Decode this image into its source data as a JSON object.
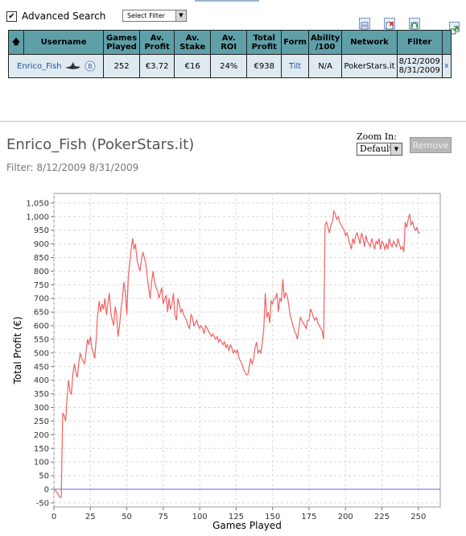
{
  "advanced_search": {
    "label": "Advanced Search",
    "checked": true,
    "check_glyph": "✔"
  },
  "filter_select": {
    "value": "Select Filter",
    "arrow": "▼"
  },
  "toolbar_icons": [
    "export-icon",
    "delete-icon",
    "refresh-icon",
    "popout-icon"
  ],
  "table": {
    "sort_arrow": "🡅",
    "headers": [
      "Username",
      "Games Played",
      "Av. Profit",
      "Av. Stake",
      "Av. ROI",
      "Total Profit",
      "Form",
      "Ability /100",
      "Network",
      "Filter"
    ],
    "row": {
      "username": "Enrico_Fish",
      "games_played": "252",
      "av_profit": "€3.72",
      "av_stake": "€16",
      "av_roi": "24%",
      "total_profit": "€938",
      "form": "Tilt",
      "ability": "N/A",
      "network": "PokerStars.it",
      "filter_from": "8/12/2009",
      "filter_to": "8/31/2009",
      "remove": "x"
    }
  },
  "header": {
    "title": "Enrico_Fish (PokerStars.it)",
    "filter_text": "Filter: 8/12/2009 8/31/2009"
  },
  "zoom": {
    "label": "Zoom In:",
    "value": "Default",
    "arrow": "▼"
  },
  "remove_button": "Remove",
  "chart_data": {
    "type": "line",
    "xlabel": "Games Played",
    "ylabel": "Total Profit (€)",
    "xlim": [
      0,
      265
    ],
    "ylim": [
      -65,
      1085
    ],
    "x_ticks": [
      0,
      25,
      50,
      75,
      100,
      125,
      150,
      175,
      200,
      225,
      250
    ],
    "y_ticks": [
      -50,
      0,
      50,
      100,
      150,
      200,
      250,
      300,
      350,
      400,
      450,
      500,
      550,
      600,
      650,
      700,
      750,
      800,
      850,
      900,
      950,
      1000,
      1050
    ],
    "grid": true,
    "series_color": "#f06060",
    "baseline_color": "#6666ee",
    "series": [
      {
        "points": [
          [
            0,
            0
          ],
          [
            2,
            -10
          ],
          [
            4,
            -30
          ],
          [
            5,
            -30
          ],
          [
            6,
            280
          ],
          [
            7,
            270
          ],
          [
            8,
            250
          ],
          [
            9,
            330
          ],
          [
            10,
            400
          ],
          [
            11,
            360
          ],
          [
            12,
            350
          ],
          [
            13,
            420
          ],
          [
            14,
            460
          ],
          [
            15,
            430
          ],
          [
            16,
            410
          ],
          [
            17,
            460
          ],
          [
            18,
            500
          ],
          [
            19,
            480
          ],
          [
            20,
            470
          ],
          [
            21,
            460
          ],
          [
            22,
            500
          ],
          [
            23,
            550
          ],
          [
            24,
            530
          ],
          [
            25,
            560
          ],
          [
            26,
            520
          ],
          [
            27,
            500
          ],
          [
            28,
            480
          ],
          [
            29,
            550
          ],
          [
            30,
            640
          ],
          [
            31,
            690
          ],
          [
            32,
            650
          ],
          [
            33,
            680
          ],
          [
            34,
            660
          ],
          [
            35,
            700
          ],
          [
            36,
            640
          ],
          [
            37,
            680
          ],
          [
            38,
            720
          ],
          [
            39,
            650
          ],
          [
            40,
            620
          ],
          [
            41,
            600
          ],
          [
            42,
            670
          ],
          [
            43,
            640
          ],
          [
            44,
            560
          ],
          [
            45,
            600
          ],
          [
            46,
            660
          ],
          [
            47,
            700
          ],
          [
            48,
            760
          ],
          [
            49,
            720
          ],
          [
            50,
            640
          ],
          [
            51,
            780
          ],
          [
            52,
            830
          ],
          [
            53,
            880
          ],
          [
            54,
            920
          ],
          [
            55,
            880
          ],
          [
            56,
            900
          ],
          [
            57,
            840
          ],
          [
            58,
            820
          ],
          [
            59,
            800
          ],
          [
            60,
            840
          ],
          [
            61,
            870
          ],
          [
            62,
            850
          ],
          [
            63,
            830
          ],
          [
            64,
            780
          ],
          [
            65,
            740
          ],
          [
            66,
            700
          ],
          [
            67,
            760
          ],
          [
            68,
            800
          ],
          [
            69,
            760
          ],
          [
            70,
            740
          ],
          [
            71,
            730
          ],
          [
            72,
            700
          ],
          [
            73,
            720
          ],
          [
            74,
            740
          ],
          [
            75,
            680
          ],
          [
            76,
            700
          ],
          [
            77,
            710
          ],
          [
            78,
            650
          ],
          [
            79,
            700
          ],
          [
            80,
            660
          ],
          [
            81,
            680
          ],
          [
            82,
            720
          ],
          [
            83,
            640
          ],
          [
            84,
            620
          ],
          [
            85,
            700
          ],
          [
            86,
            680
          ],
          [
            87,
            650
          ],
          [
            88,
            660
          ],
          [
            89,
            640
          ],
          [
            90,
            630
          ],
          [
            91,
            620
          ],
          [
            92,
            600
          ],
          [
            93,
            590
          ],
          [
            94,
            640
          ],
          [
            95,
            630
          ],
          [
            96,
            600
          ],
          [
            97,
            610
          ],
          [
            98,
            620
          ],
          [
            99,
            600
          ],
          [
            100,
            590
          ],
          [
            101,
            600
          ],
          [
            102,
            590
          ],
          [
            103,
            570
          ],
          [
            104,
            600
          ],
          [
            105,
            590
          ],
          [
            106,
            580
          ],
          [
            107,
            570
          ],
          [
            108,
            560
          ],
          [
            109,
            570
          ],
          [
            110,
            560
          ],
          [
            111,
            550
          ],
          [
            112,
            560
          ],
          [
            113,
            540
          ],
          [
            114,
            550
          ],
          [
            115,
            540
          ],
          [
            116,
            530
          ],
          [
            117,
            540
          ],
          [
            118,
            520
          ],
          [
            119,
            530
          ],
          [
            120,
            510
          ],
          [
            121,
            530
          ],
          [
            122,
            520
          ],
          [
            123,
            500
          ],
          [
            124,
            510
          ],
          [
            125,
            500
          ],
          [
            126,
            510
          ],
          [
            127,
            480
          ],
          [
            128,
            470
          ],
          [
            129,
            460
          ],
          [
            130,
            440
          ],
          [
            131,
            430
          ],
          [
            132,
            420
          ],
          [
            133,
            420
          ],
          [
            134,
            450
          ],
          [
            135,
            480
          ],
          [
            136,
            460
          ],
          [
            137,
            480
          ],
          [
            138,
            520
          ],
          [
            139,
            540
          ],
          [
            140,
            500
          ],
          [
            141,
            510
          ],
          [
            142,
            500
          ],
          [
            143,
            540
          ],
          [
            144,
            590
          ],
          [
            145,
            720
          ],
          [
            146,
            630
          ],
          [
            147,
            650
          ],
          [
            148,
            610
          ],
          [
            149,
            690
          ],
          [
            150,
            680
          ],
          [
            151,
            700
          ],
          [
            152,
            700
          ],
          [
            153,
            720
          ],
          [
            154,
            650
          ],
          [
            155,
            700
          ],
          [
            156,
            690
          ],
          [
            157,
            770
          ],
          [
            158,
            700
          ],
          [
            159,
            720
          ],
          [
            160,
            710
          ],
          [
            161,
            680
          ],
          [
            162,
            640
          ],
          [
            163,
            620
          ],
          [
            164,
            600
          ],
          [
            165,
            580
          ],
          [
            166,
            570
          ],
          [
            167,
            550
          ],
          [
            168,
            590
          ],
          [
            169,
            630
          ],
          [
            170,
            620
          ],
          [
            171,
            610
          ],
          [
            172,
            600
          ],
          [
            173,
            590
          ],
          [
            174,
            620
          ],
          [
            175,
            620
          ],
          [
            176,
            660
          ],
          [
            177,
            650
          ],
          [
            178,
            630
          ],
          [
            179,
            620
          ],
          [
            180,
            630
          ],
          [
            181,
            610
          ],
          [
            182,
            600
          ],
          [
            183,
            590
          ],
          [
            184,
            580
          ],
          [
            185,
            550
          ],
          [
            186,
            970
          ],
          [
            187,
            980
          ],
          [
            188,
            960
          ],
          [
            189,
            940
          ],
          [
            190,
            970
          ],
          [
            191,
            980
          ],
          [
            192,
            1020
          ],
          [
            193,
            1010
          ],
          [
            194,
            990
          ],
          [
            195,
            1000
          ],
          [
            196,
            980
          ],
          [
            197,
            970
          ],
          [
            198,
            960
          ],
          [
            199,
            950
          ],
          [
            200,
            930
          ],
          [
            201,
            940
          ],
          [
            202,
            920
          ],
          [
            203,
            900
          ],
          [
            204,
            880
          ],
          [
            205,
            920
          ],
          [
            206,
            900
          ],
          [
            207,
            930
          ],
          [
            208,
            940
          ],
          [
            209,
            920
          ],
          [
            210,
            900
          ],
          [
            211,
            940
          ],
          [
            212,
            920
          ],
          [
            213,
            890
          ],
          [
            214,
            930
          ],
          [
            215,
            910
          ],
          [
            216,
            900
          ],
          [
            217,
            890
          ],
          [
            218,
            920
          ],
          [
            219,
            900
          ],
          [
            220,
            880
          ],
          [
            221,
            910
          ],
          [
            222,
            900
          ],
          [
            223,
            920
          ],
          [
            224,
            880
          ],
          [
            225,
            910
          ],
          [
            226,
            900
          ],
          [
            227,
            880
          ],
          [
            228,
            900
          ],
          [
            229,
            880
          ],
          [
            230,
            920
          ],
          [
            231,
            900
          ],
          [
            232,
            890
          ],
          [
            233,
            910
          ],
          [
            234,
            900
          ],
          [
            235,
            890
          ],
          [
            236,
            920
          ],
          [
            237,
            900
          ],
          [
            238,
            880
          ],
          [
            239,
            890
          ],
          [
            240,
            870
          ],
          [
            241,
            980
          ],
          [
            242,
            960
          ],
          [
            243,
            990
          ],
          [
            244,
            1010
          ],
          [
            245,
            970
          ],
          [
            246,
            980
          ],
          [
            247,
            960
          ],
          [
            248,
            950
          ],
          [
            249,
            960
          ],
          [
            250,
            940
          ],
          [
            251,
            940
          ]
        ]
      }
    ]
  }
}
